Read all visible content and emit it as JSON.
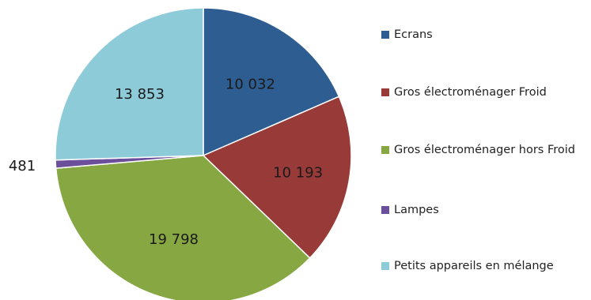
{
  "chart_data": {
    "type": "pie",
    "categories": [
      "Ecrans",
      "Gros électroménager Froid",
      "Gros électroménager hors Froid",
      "Lampes",
      "Petits appareils en mélange"
    ],
    "values": [
      10032,
      10193,
      19798,
      481,
      13853
    ],
    "data_labels": [
      "10 032",
      "10 193",
      "19 798",
      "481",
      "13 853"
    ],
    "colors": [
      "#2e5e91",
      "#973a38",
      "#86a742",
      "#6b4f9a",
      "#8ecbd9"
    ],
    "legend_position": "right",
    "start_angle_deg": 0,
    "direction": "clockwise"
  }
}
